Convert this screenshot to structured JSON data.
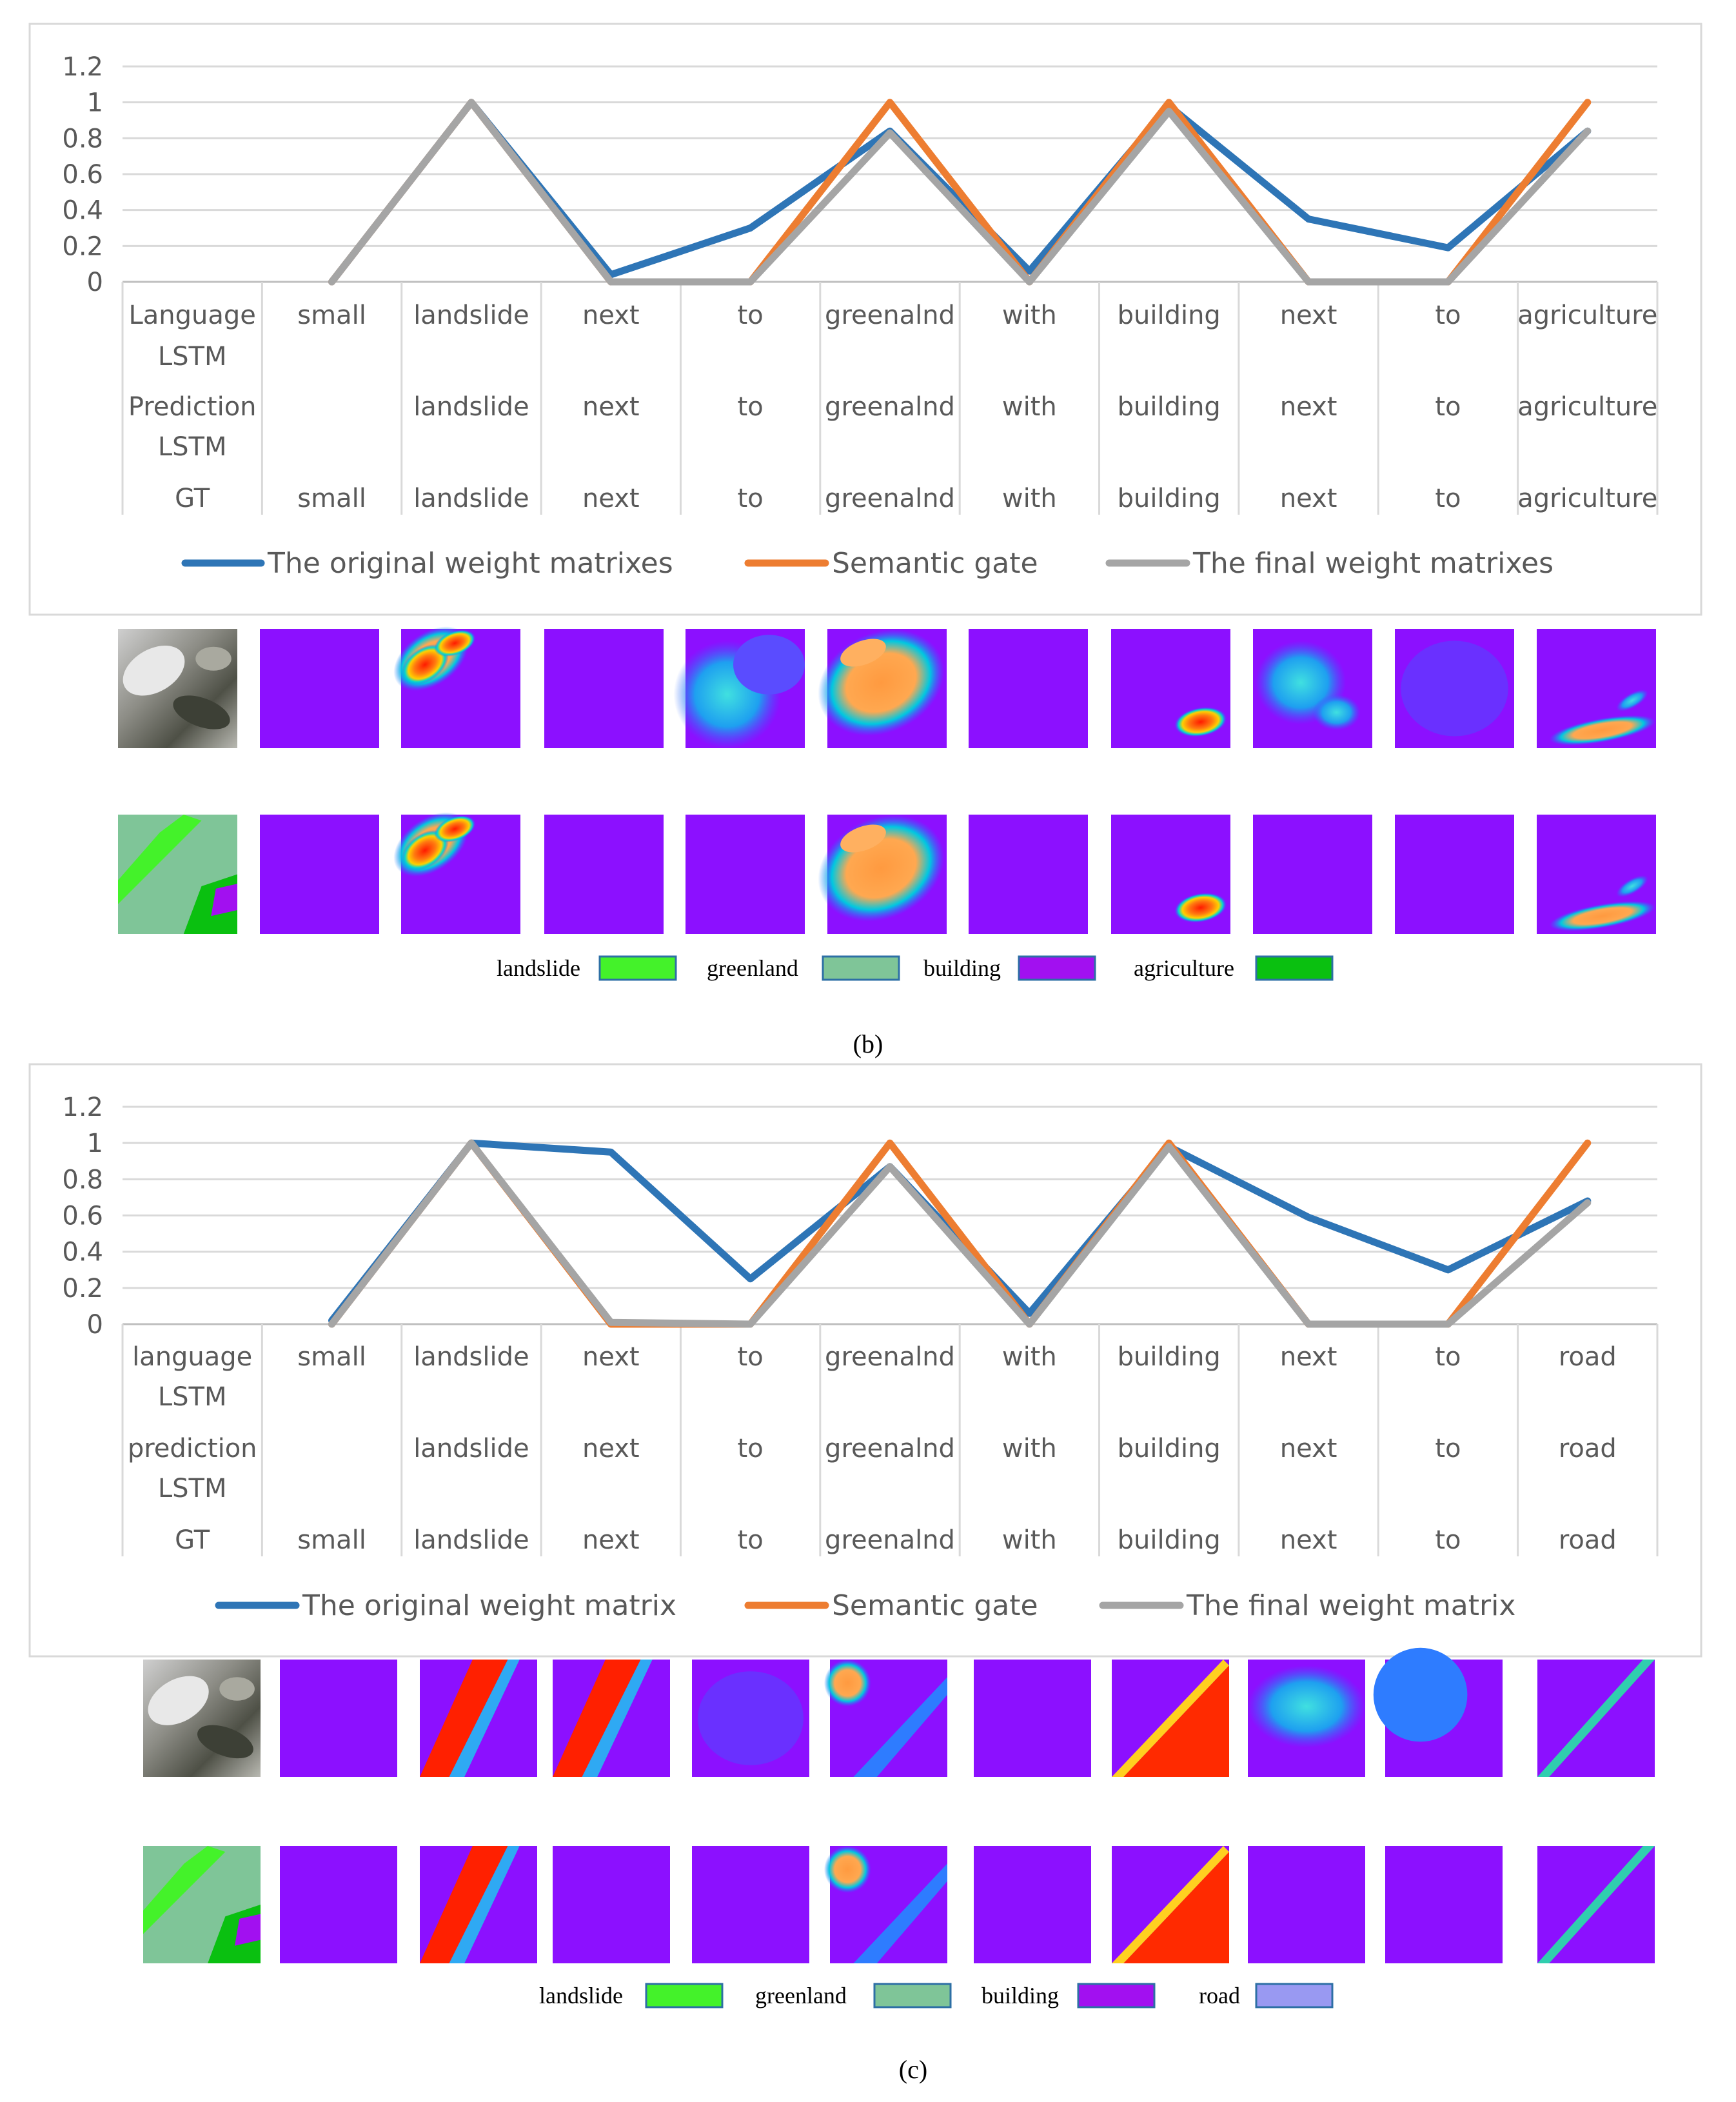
{
  "figure": {
    "panels": [
      {
        "caption": "(b)",
        "chart_data": {
          "type": "line",
          "title": "",
          "xlabel": "",
          "ylabel": "",
          "ylim": [
            0,
            1.2
          ],
          "yticks": [
            "1.2",
            "1",
            "0.8",
            "0.6",
            "0.4",
            "0.2",
            "0"
          ],
          "categories": [
            "",
            "small",
            "landslide",
            "next",
            "to",
            "greenalnd",
            "with",
            "building",
            "next",
            "to",
            "agriculture"
          ],
          "table_rows": [
            {
              "label": [
                "Language",
                "LSTM"
              ],
              "cells": [
                "",
                "small",
                "landslide",
                "next",
                "to",
                "greenalnd",
                "with",
                "building",
                "next",
                "to",
                "agriculture"
              ]
            },
            {
              "label": [
                "Prediction",
                "LSTM"
              ],
              "cells": [
                "",
                "",
                "landslide",
                "next",
                "to",
                "greenalnd",
                "with",
                "building",
                "next",
                "to",
                "agriculture"
              ]
            },
            {
              "label": [
                "GT"
              ],
              "cells": [
                "",
                "small",
                "landslide",
                "next",
                "to",
                "greenalnd",
                "with",
                "building",
                "next",
                "to",
                "agriculture"
              ]
            }
          ],
          "series": [
            {
              "name": "The original weight matrixes",
              "color": "#2E75B6",
              "values": [
                null,
                0,
                1,
                0.04,
                0.3,
                0.84,
                0.06,
                0.98,
                0.35,
                0.19,
                0.84
              ]
            },
            {
              "name": "Semantic gate",
              "color": "#ED7D31",
              "values": [
                null,
                0,
                1,
                0,
                0,
                1,
                0,
                1,
                0,
                0,
                1
              ]
            },
            {
              "name": "The final weight matrixes",
              "color": "#A5A5A5",
              "values": [
                null,
                0,
                1,
                0,
                0,
                0.83,
                0,
                0.95,
                0,
                0,
                0.84
              ]
            }
          ]
        },
        "heatmap_rows": [
          {
            "row": "prediction",
            "tiles": [
              "aerial-photo",
              "flat",
              "landslide-red",
              "flat",
              "blue-cloud",
              "greenland-orange",
              "flat",
              "building-blob",
              "blue-speckle",
              "flat-faint",
              "agri-streak"
            ]
          },
          {
            "row": "ground-truth",
            "tiles": [
              "label-map",
              "flat",
              "landslide-red",
              "flat",
              "flat",
              "greenland-orange",
              "flat",
              "building-blob",
              "flat",
              "flat",
              "agri-streak"
            ]
          }
        ],
        "legend": [
          {
            "label": "landslide",
            "color": "#44F22A"
          },
          {
            "label": "greenland",
            "color": "#7FC598"
          },
          {
            "label": "building",
            "color": "#A210F0"
          },
          {
            "label": "agriculture",
            "color": "#0AC010"
          }
        ]
      },
      {
        "caption": "(c)",
        "chart_data": {
          "type": "line",
          "title": "",
          "xlabel": "",
          "ylabel": "",
          "ylim": [
            0,
            1.2
          ],
          "yticks": [
            "1.2",
            "1",
            "0.8",
            "0.6",
            "0.4",
            "0.2",
            "0"
          ],
          "categories": [
            "",
            "small",
            "landslide",
            "next",
            "to",
            "greenalnd",
            "with",
            "building",
            "next",
            "to",
            "road"
          ],
          "table_rows": [
            {
              "label": [
                "language",
                "LSTM"
              ],
              "cells": [
                "",
                "small",
                "landslide",
                "next",
                "to",
                "greenalnd",
                "with",
                "building",
                "next",
                "to",
                "road"
              ]
            },
            {
              "label": [
                "prediction",
                "LSTM"
              ],
              "cells": [
                "",
                "",
                "landslide",
                "next",
                "to",
                "greenalnd",
                "with",
                "building",
                "next",
                "to",
                "road"
              ]
            },
            {
              "label": [
                "GT"
              ],
              "cells": [
                "",
                "small",
                "landslide",
                "next",
                "to",
                "greenalnd",
                "with",
                "building",
                "next",
                "to",
                "road"
              ]
            }
          ],
          "series": [
            {
              "name": "The original weight matrix",
              "color": "#2E75B6",
              "values": [
                null,
                0.02,
                1,
                0.95,
                0.25,
                0.87,
                0.06,
                0.98,
                0.59,
                0.3,
                0.68
              ]
            },
            {
              "name": "Semantic gate",
              "color": "#ED7D31",
              "values": [
                null,
                0,
                1,
                0,
                0,
                1,
                0,
                1,
                0,
                0,
                1
              ]
            },
            {
              "name": "The final weight matrix",
              "color": "#A5A5A5",
              "values": [
                null,
                0,
                1,
                0.01,
                0,
                0.87,
                0,
                0.98,
                0,
                0,
                0.67
              ]
            }
          ]
        },
        "heatmap_rows": [
          {
            "row": "prediction",
            "tiles": [
              "aerial-photo",
              "flat",
              "road-band",
              "road-band",
              "flat-faint",
              "diag-faint",
              "flat",
              "building-tri",
              "cyan-speckle",
              "blue-corner",
              "road-line"
            ]
          },
          {
            "row": "ground-truth",
            "tiles": [
              "label-map",
              "flat",
              "road-band",
              "flat",
              "flat",
              "diag-faint",
              "flat",
              "building-tri",
              "flat",
              "flat",
              "road-line"
            ]
          }
        ],
        "legend": [
          {
            "label": "landslide",
            "color": "#44F22A"
          },
          {
            "label": "greenland",
            "color": "#7FC598"
          },
          {
            "label": "building",
            "color": "#A210F0"
          },
          {
            "label": "road",
            "color": "#9999F2"
          }
        ]
      }
    ]
  }
}
